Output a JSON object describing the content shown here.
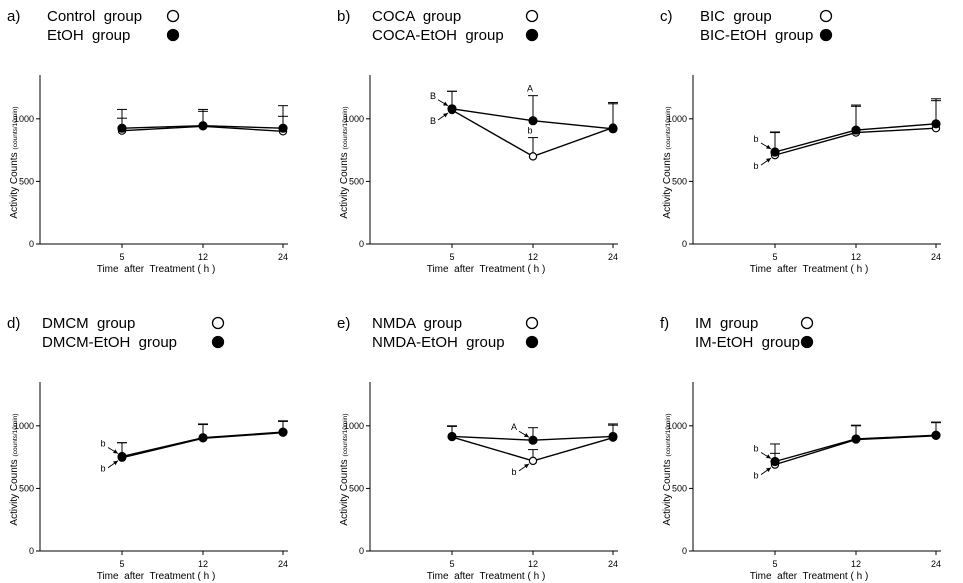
{
  "chart_data": [
    {
      "panel": "a)",
      "type": "line",
      "ylabel": "Activity Counts",
      "ylabel_unit": "(counts/10min)",
      "xlabel": "Time  after  Treatment ( h )",
      "categories": [
        "5",
        "12",
        "24"
      ],
      "ylim": [
        0,
        1350
      ],
      "yticks": [
        0,
        500,
        1000
      ],
      "series": [
        {
          "name": "Control  group",
          "marker": "open",
          "values": [
            905,
            940,
            900
          ],
          "err": [
            100,
            120,
            120
          ]
        },
        {
          "name": "EtOH  group",
          "marker": "filled",
          "values": [
            925,
            945,
            925
          ],
          "err": [
            150,
            130,
            180
          ]
        }
      ],
      "annotations": []
    },
    {
      "panel": "b)",
      "type": "line",
      "ylabel": "Activity Counts",
      "ylabel_unit": "(counts/10min)",
      "xlabel": "Time  after  Treatment ( h )",
      "categories": [
        "5",
        "12",
        "24"
      ],
      "ylim": [
        0,
        1350
      ],
      "yticks": [
        0,
        500,
        1000
      ],
      "series": [
        {
          "name": "COCA  group",
          "marker": "open",
          "values": [
            1070,
            700,
            930
          ],
          "err": [
            150,
            150,
            200
          ]
        },
        {
          "name": "COCA-EtOH  group",
          "marker": "filled",
          "values": [
            1080,
            985,
            920
          ],
          "err": [
            140,
            200,
            200
          ]
        }
      ],
      "annotations": [
        {
          "text": "B",
          "x": 0,
          "y": 1080,
          "pos": "upper-left",
          "arrow": true
        },
        {
          "text": "B",
          "x": 0,
          "y": 1070,
          "pos": "lower-left",
          "arrow": true
        },
        {
          "text": "A",
          "x": 1,
          "y": 985,
          "pos": "above-bar",
          "arrow": false
        },
        {
          "text": "b",
          "x": 1,
          "y": 700,
          "pos": "above-bar",
          "arrow": false
        }
      ]
    },
    {
      "panel": "c)",
      "type": "line",
      "ylabel": "Activity Counts",
      "ylabel_unit": "(counts/10min)",
      "xlabel": "Time  after  Treatment ( h )",
      "categories": [
        "5",
        "12",
        "24"
      ],
      "ylim": [
        0,
        1350
      ],
      "yticks": [
        0,
        500,
        1000
      ],
      "series": [
        {
          "name": "BIC  group",
          "marker": "open",
          "values": [
            710,
            890,
            925
          ],
          "err": [
            180,
            210,
            220
          ]
        },
        {
          "name": "BIC-EtOH  group",
          "marker": "filled",
          "values": [
            735,
            910,
            960
          ],
          "err": [
            160,
            200,
            200
          ]
        }
      ],
      "annotations": [
        {
          "text": "b",
          "x": 0,
          "y": 735,
          "pos": "upper-left",
          "arrow": true
        },
        {
          "text": "b",
          "x": 0,
          "y": 710,
          "pos": "lower-left",
          "arrow": true
        }
      ]
    },
    {
      "panel": "d)",
      "type": "line",
      "ylabel": "Activity Counts",
      "ylabel_unit": "(counts/10min)",
      "xlabel": "Time  after  Treatment ( h )",
      "categories": [
        "5",
        "12",
        "24"
      ],
      "ylim": [
        0,
        1350
      ],
      "yticks": [
        0,
        500,
        1000
      ],
      "series": [
        {
          "name": "DMCM  group",
          "marker": "open",
          "values": [
            745,
            900,
            945
          ],
          "err": [
            120,
            110,
            90
          ]
        },
        {
          "name": "DMCM-EtOH  group",
          "marker": "filled",
          "values": [
            755,
            905,
            950
          ],
          "err": [
            110,
            110,
            90
          ]
        }
      ],
      "annotations": [
        {
          "text": "b",
          "x": 0,
          "y": 755,
          "pos": "upper-left",
          "arrow": true
        },
        {
          "text": "b",
          "x": 0,
          "y": 745,
          "pos": "lower-left",
          "arrow": true
        }
      ]
    },
    {
      "panel": "e)",
      "type": "line",
      "ylabel": "Activity Counts",
      "ylabel_unit": "(counts/10min)",
      "xlabel": "Time  after  Treatment ( h )",
      "categories": [
        "5",
        "12",
        "24"
      ],
      "ylim": [
        0,
        1350
      ],
      "yticks": [
        0,
        500,
        1000
      ],
      "series": [
        {
          "name": "NMDA  group",
          "marker": "open",
          "values": [
            910,
            720,
            905
          ],
          "err": [
            90,
            90,
            100
          ]
        },
        {
          "name": "NMDA-EtOH  group",
          "marker": "filled",
          "values": [
            915,
            885,
            915
          ],
          "err": [
            80,
            100,
            100
          ]
        }
      ],
      "annotations": [
        {
          "text": "A",
          "x": 1,
          "y": 885,
          "pos": "upper-left",
          "arrow": true
        },
        {
          "text": "b",
          "x": 1,
          "y": 720,
          "pos": "lower-left",
          "arrow": true
        }
      ]
    },
    {
      "panel": "f)",
      "type": "line",
      "ylabel": "Activity Counts",
      "ylabel_unit": "(counts/10min)",
      "xlabel": "Time  after  Treatment ( h )",
      "categories": [
        "5",
        "12",
        "24"
      ],
      "ylim": [
        0,
        1350
      ],
      "yticks": [
        0,
        500,
        1000
      ],
      "series": [
        {
          "name": "IM  group",
          "marker": "open",
          "values": [
            690,
            890,
            920
          ],
          "err": [
            90,
            110,
            110
          ]
        },
        {
          "name": "IM-EtOH  group",
          "marker": "filled",
          "values": [
            715,
            895,
            925
          ],
          "err": [
            140,
            110,
            100
          ]
        }
      ],
      "annotations": [
        {
          "text": "b",
          "x": 0,
          "y": 715,
          "pos": "upper-left",
          "arrow": true
        },
        {
          "text": "b",
          "x": 0,
          "y": 690,
          "pos": "lower-left",
          "arrow": true
        }
      ]
    }
  ]
}
